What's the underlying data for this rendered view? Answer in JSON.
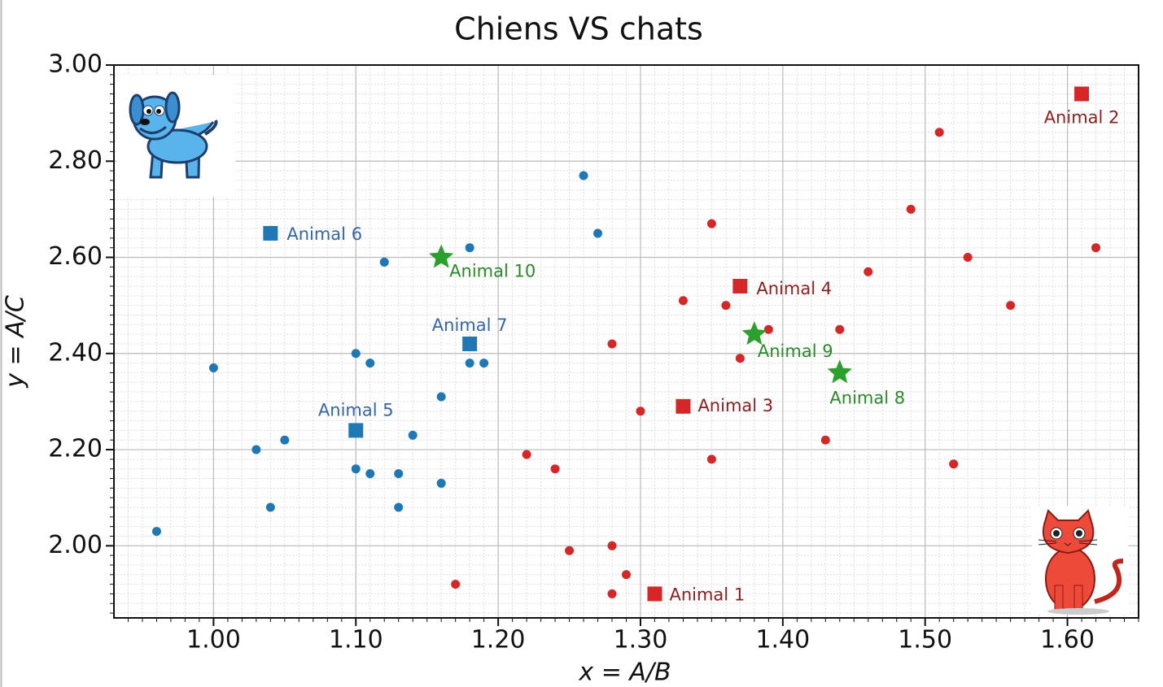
{
  "chart_data": {
    "type": "scatter",
    "title": "Chiens VS chats",
    "xlabel": "x = A/B",
    "ylabel": "y = A/C",
    "xlim": [
      0.93,
      1.65
    ],
    "ylim": [
      1.85,
      3.0
    ],
    "xticks": [
      {
        "value": 1.0,
        "label": "1.00"
      },
      {
        "value": 1.1,
        "label": "1.10"
      },
      {
        "value": 1.2,
        "label": "1.20"
      },
      {
        "value": 1.3,
        "label": "1.30"
      },
      {
        "value": 1.4,
        "label": "1.40"
      },
      {
        "value": 1.5,
        "label": "1.50"
      },
      {
        "value": 1.6,
        "label": "1.60"
      }
    ],
    "yticks": [
      {
        "value": 2.0,
        "label": "2.00"
      },
      {
        "value": 2.2,
        "label": "2.20"
      },
      {
        "value": 2.4,
        "label": "2.40"
      },
      {
        "value": 2.6,
        "label": "2.60"
      },
      {
        "value": 2.8,
        "label": "2.80"
      },
      {
        "value": 3.0,
        "label": "3.00"
      }
    ],
    "grid": true,
    "minor_grid": true,
    "series": [
      {
        "color": "#1f77b4",
        "marker": "circle",
        "x": [
          0.96,
          1.0,
          1.03,
          1.04,
          1.05,
          1.1,
          1.1,
          1.11,
          1.11,
          1.12,
          1.13,
          1.13,
          1.14,
          1.16,
          1.16,
          1.18,
          1.18,
          1.19,
          1.26,
          1.27
        ],
        "values": [
          2.03,
          2.37,
          2.2,
          2.08,
          2.22,
          2.4,
          2.16,
          2.38,
          2.15,
          2.59,
          2.15,
          2.08,
          2.23,
          2.31,
          2.13,
          2.62,
          2.38,
          2.38,
          2.77,
          2.65
        ]
      },
      {
        "color": "#d62728",
        "marker": "circle",
        "x": [
          1.17,
          1.22,
          1.24,
          1.25,
          1.28,
          1.28,
          1.28,
          1.29,
          1.3,
          1.33,
          1.35,
          1.35,
          1.36,
          1.37,
          1.39,
          1.43,
          1.44,
          1.46,
          1.49,
          1.51,
          1.52,
          1.53,
          1.56,
          1.62
        ],
        "values": [
          1.92,
          2.19,
          2.16,
          1.99,
          2.42,
          2.0,
          1.9,
          1.94,
          2.28,
          2.51,
          2.67,
          2.18,
          2.5,
          2.39,
          2.45,
          2.22,
          2.45,
          2.57,
          2.7,
          2.86,
          2.17,
          2.6,
          2.5,
          2.62
        ]
      },
      {
        "color": "#d62728",
        "marker": "square",
        "label_color": "#8b1e1e",
        "x": [
          1.31,
          1.61,
          1.33,
          1.37
        ],
        "values": [
          1.9,
          2.94,
          2.29,
          2.54
        ],
        "labels": [
          "Animal 1",
          "Animal 2",
          "Animal 3",
          "Animal 4"
        ]
      },
      {
        "color": "#1f77b4",
        "marker": "square",
        "label_color": "#3466a8",
        "x": [
          1.1,
          1.04,
          1.18
        ],
        "values": [
          2.24,
          2.65,
          2.42
        ],
        "labels": [
          "Animal 5",
          "Animal 6",
          "Animal 7"
        ]
      },
      {
        "color": "#2ca02c",
        "marker": "star",
        "label_color": "#2a8a2a",
        "x": [
          1.44,
          1.38,
          1.16
        ],
        "values": [
          2.36,
          2.44,
          2.6
        ],
        "labels": [
          "Animal 8",
          "Animal 9",
          "Animal 10"
        ]
      }
    ]
  }
}
